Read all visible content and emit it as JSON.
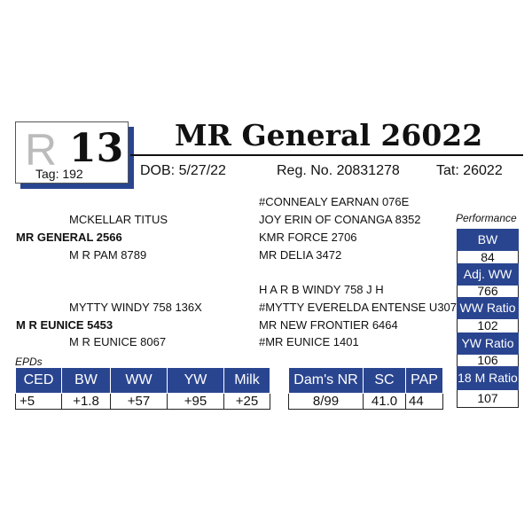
{
  "header": {
    "logo_letter": "R",
    "lot": "13",
    "tag": "Tag: 192",
    "title": "MR General 26022",
    "dob": "DOB: 5/27/22",
    "reg": "Reg. No. 20831278",
    "tat": "Tat: 26022"
  },
  "pedigree": {
    "sss": "#CONNEALY EARNAN 076E",
    "ss": "MCKELLAR TITUS",
    "ssd": "JOY ERIN OF CONANGA 8352",
    "sire": "MR GENERAL 2566",
    "sds": "KMR FORCE 2706",
    "sd": "M R PAM 8789",
    "sdd": "MR DELIA 3472",
    "dss": "H A R B WINDY 758 J H",
    "ds": "MYTTY WINDY 758 136X",
    "dsd": "#MYTTY EVERELDA ENTENSE U307",
    "dam": "M R EUNICE 5453",
    "dds": "MR NEW FRONTIER 6464",
    "dd": "M R EUNICE 8067",
    "ddd": "#MR EUNICE 1401"
  },
  "epds": {
    "label": "EPDs",
    "headers": [
      "CED",
      "BW",
      "WW",
      "YW",
      "Milk"
    ],
    "values": [
      "+5",
      "+1.8",
      "+57",
      "+95",
      "+25"
    ]
  },
  "extra": {
    "headers": [
      "Dam's NR",
      "SC",
      "PAP"
    ],
    "values": [
      "8/99",
      "41.0",
      "44"
    ]
  },
  "performance": {
    "label": "Performance",
    "items": [
      {
        "label": "BW",
        "value": "84"
      },
      {
        "label": "Adj. WW",
        "value": "766"
      },
      {
        "label": "WW Ratio",
        "value": "102"
      },
      {
        "label": "YW Ratio",
        "value": "106"
      },
      {
        "label": "18 M Ratio",
        "value": "107"
      }
    ]
  },
  "colors": {
    "accent": "#2a4590"
  }
}
